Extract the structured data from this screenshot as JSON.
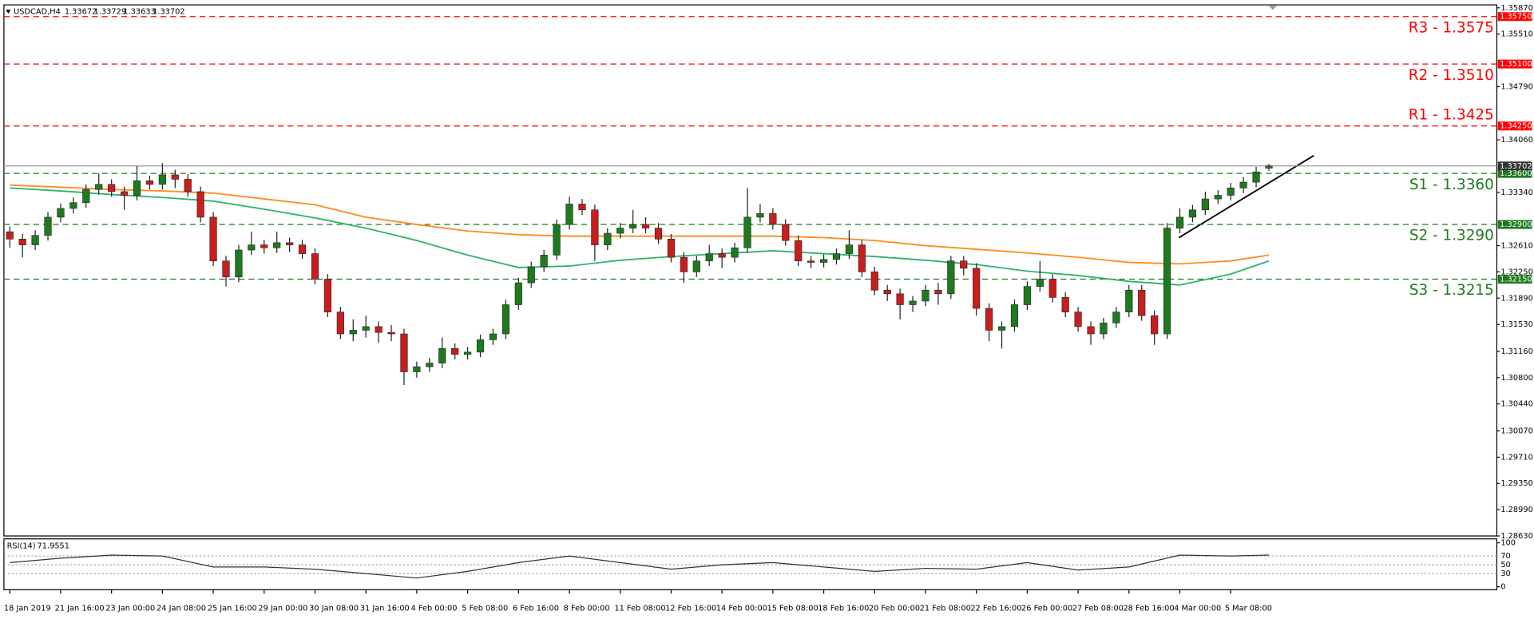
{
  "chart_data": {
    "type": "candlestick",
    "title": "USDCAD,H4",
    "categories": [
      "18 Jan 2019",
      null,
      null,
      null,
      "21 Jan 16:00",
      null,
      null,
      null,
      "23 Jan 00:00",
      null,
      null,
      null,
      "24 Jan 08:00",
      null,
      null,
      null,
      "25 Jan 16:00",
      null,
      null,
      null,
      "29 Jan 00:00",
      null,
      null,
      null,
      "30 Jan 08:00",
      null,
      null,
      null,
      "31 Jan 16:00",
      null,
      null,
      null,
      "4 Feb 00:00",
      null,
      null,
      null,
      "5 Feb 08:00",
      null,
      null,
      null,
      "6 Feb 16:00",
      null,
      null,
      null,
      "8 Feb 00:00",
      null,
      null,
      null,
      "11 Feb 08:00",
      null,
      null,
      null,
      "12 Feb 16:00",
      null,
      null,
      null,
      "14 Feb 00:00",
      null,
      null,
      null,
      "15 Feb 08:00",
      null,
      null,
      null,
      "18 Feb 16:00",
      null,
      null,
      null,
      "20 Feb 00:00",
      null,
      null,
      null,
      "21 Feb 08:00",
      null,
      null,
      null,
      "22 Feb 16:00",
      null,
      null,
      null,
      "26 Feb 00:00",
      null,
      null,
      null,
      "27 Feb 08:00",
      null,
      null,
      null,
      "28 Feb 16:00",
      null,
      null,
      null,
      "4 Mar 00:00",
      null,
      null,
      null,
      "5 Mar 08:00",
      null,
      null,
      null
    ],
    "open": [
      1.328,
      1.327,
      1.3262,
      1.3275,
      1.33,
      1.3312,
      1.332,
      1.3338,
      1.3345,
      1.3335,
      1.333,
      1.335,
      1.3345,
      1.3358,
      1.3352,
      1.3335,
      1.33,
      1.324,
      1.3218,
      1.3255,
      1.3262,
      1.3258,
      1.3265,
      1.3262,
      1.325,
      1.3215,
      1.317,
      1.314,
      1.3145,
      1.315,
      1.3142,
      1.314,
      1.3088,
      1.3095,
      1.31,
      1.312,
      1.3112,
      1.3115,
      1.3132,
      1.314,
      1.318,
      1.321,
      1.3232,
      1.3248,
      1.329,
      1.3318,
      1.331,
      1.3262,
      1.3278,
      1.3285,
      1.329,
      1.3285,
      1.327,
      1.3245,
      1.3225,
      1.324,
      1.325,
      1.3245,
      1.3258,
      1.33,
      1.3305,
      1.329,
      1.3268,
      1.324,
      1.3238,
      1.3242,
      1.325,
      1.3262,
      1.3225,
      1.32,
      1.3195,
      1.318,
      1.3185,
      1.32,
      1.3195,
      1.324,
      1.323,
      1.3175,
      1.3145,
      1.315,
      1.318,
      1.3205,
      1.3215,
      1.319,
      1.317,
      1.315,
      1.314,
      1.3155,
      1.317,
      1.32,
      1.3165,
      1.314,
      1.3285,
      1.33,
      1.331,
      1.3325,
      1.333,
      1.334,
      1.3348,
      1.33672
    ],
    "high": [
      1.3287,
      1.3277,
      1.3282,
      1.3307,
      1.3319,
      1.3327,
      1.3345,
      1.336,
      1.3352,
      1.3342,
      1.337,
      1.3357,
      1.3374,
      1.3365,
      1.3359,
      1.3342,
      1.3307,
      1.3247,
      1.3262,
      1.328,
      1.3269,
      1.328,
      1.3272,
      1.3269,
      1.3257,
      1.3222,
      1.3177,
      1.316,
      1.3165,
      1.3157,
      1.3152,
      1.3147,
      1.3102,
      1.3107,
      1.3135,
      1.3127,
      1.3122,
      1.3139,
      1.3147,
      1.3187,
      1.3217,
      1.3239,
      1.3255,
      1.3297,
      1.3328,
      1.3325,
      1.3317,
      1.3285,
      1.3292,
      1.331,
      1.33,
      1.3292,
      1.3277,
      1.3252,
      1.3247,
      1.3262,
      1.3257,
      1.3265,
      1.334,
      1.3318,
      1.3312,
      1.3297,
      1.3275,
      1.3247,
      1.3249,
      1.3257,
      1.3282,
      1.3269,
      1.3232,
      1.3207,
      1.3202,
      1.3192,
      1.3207,
      1.321,
      1.3247,
      1.3247,
      1.3237,
      1.3182,
      1.3157,
      1.3187,
      1.3212,
      1.324,
      1.3222,
      1.3197,
      1.3177,
      1.3157,
      1.3162,
      1.3177,
      1.3207,
      1.3207,
      1.3172,
      1.3292,
      1.3312,
      1.3317,
      1.3335,
      1.3337,
      1.3347,
      1.3355,
      1.3369,
      1.33729
    ],
    "low": [
      1.3258,
      1.3245,
      1.3255,
      1.3268,
      1.3293,
      1.3305,
      1.3313,
      1.3331,
      1.3328,
      1.331,
      1.3323,
      1.3338,
      1.3338,
      1.334,
      1.3328,
      1.3293,
      1.3233,
      1.3205,
      1.3211,
      1.3248,
      1.325,
      1.3251,
      1.3252,
      1.3243,
      1.3208,
      1.3163,
      1.3133,
      1.313,
      1.3135,
      1.3128,
      1.313,
      1.307,
      1.308,
      1.3088,
      1.3093,
      1.3105,
      1.3105,
      1.3108,
      1.3125,
      1.3133,
      1.3173,
      1.3203,
      1.3225,
      1.3241,
      1.3283,
      1.3303,
      1.324,
      1.3255,
      1.3271,
      1.3278,
      1.3278,
      1.3263,
      1.3238,
      1.321,
      1.3218,
      1.3233,
      1.323,
      1.3238,
      1.3251,
      1.3293,
      1.3283,
      1.3261,
      1.3233,
      1.323,
      1.3231,
      1.3235,
      1.3243,
      1.3218,
      1.3193,
      1.3185,
      1.316,
      1.317,
      1.3178,
      1.318,
      1.3188,
      1.322,
      1.3165,
      1.313,
      1.312,
      1.3143,
      1.3173,
      1.3198,
      1.3183,
      1.3163,
      1.3143,
      1.3125,
      1.3133,
      1.3148,
      1.3163,
      1.3158,
      1.3125,
      1.3133,
      1.3278,
      1.3293,
      1.3303,
      1.3318,
      1.3323,
      1.3333,
      1.3341,
      1.33633
    ],
    "close": [
      1.327,
      1.3262,
      1.3275,
      1.33,
      1.3312,
      1.332,
      1.3338,
      1.3345,
      1.3335,
      1.333,
      1.335,
      1.3345,
      1.3358,
      1.3352,
      1.3335,
      1.33,
      1.324,
      1.3218,
      1.3255,
      1.3262,
      1.3258,
      1.3265,
      1.3262,
      1.325,
      1.3215,
      1.317,
      1.314,
      1.3145,
      1.315,
      1.3142,
      1.314,
      1.3088,
      1.3095,
      1.31,
      1.312,
      1.3112,
      1.3115,
      1.3132,
      1.314,
      1.318,
      1.321,
      1.3232,
      1.3248,
      1.329,
      1.3318,
      1.331,
      1.3262,
      1.3278,
      1.3285,
      1.329,
      1.3285,
      1.327,
      1.3245,
      1.3225,
      1.324,
      1.325,
      1.3245,
      1.3258,
      1.33,
      1.3305,
      1.329,
      1.3268,
      1.324,
      1.3238,
      1.3242,
      1.325,
      1.3262,
      1.3225,
      1.32,
      1.3195,
      1.318,
      1.3185,
      1.32,
      1.3195,
      1.324,
      1.323,
      1.3175,
      1.3145,
      1.315,
      1.318,
      1.3205,
      1.3215,
      1.319,
      1.317,
      1.315,
      1.314,
      1.3155,
      1.317,
      1.32,
      1.3165,
      1.314,
      1.3285,
      1.33,
      1.331,
      1.3325,
      1.333,
      1.334,
      1.3348,
      1.3362,
      1.33702
    ],
    "up_color": "#1f7a1f",
    "down_color": "#c81e1e",
    "series": [
      {
        "color": "#ff8c1a",
        "x": [
          0,
          4,
          8,
          12,
          16,
          20,
          24,
          28,
          32,
          36,
          40,
          44,
          48,
          52,
          56,
          60,
          64,
          68,
          72,
          76,
          80,
          84,
          88,
          92,
          96,
          99
        ],
        "values": [
          1.3344,
          1.3341,
          1.3338,
          1.3336,
          1.3333,
          1.3325,
          1.3317,
          1.33,
          1.329,
          1.3281,
          1.3276,
          1.3274,
          1.3274,
          1.3274,
          1.3274,
          1.3274,
          1.3272,
          1.3268,
          1.3261,
          1.3256,
          1.3251,
          1.3245,
          1.3238,
          1.3236,
          1.324,
          1.3248
        ]
      },
      {
        "color": "#2db36b",
        "x": [
          0,
          4,
          8,
          12,
          16,
          20,
          24,
          28,
          32,
          36,
          40,
          44,
          48,
          52,
          56,
          60,
          64,
          68,
          72,
          76,
          80,
          84,
          88,
          92,
          96,
          99
        ],
        "values": [
          1.334,
          1.3336,
          1.3331,
          1.3327,
          1.3322,
          1.3311,
          1.3299,
          1.3285,
          1.3268,
          1.3248,
          1.3231,
          1.3233,
          1.3241,
          1.3246,
          1.325,
          1.3254,
          1.325,
          1.3246,
          1.3241,
          1.3235,
          1.3226,
          1.322,
          1.3212,
          1.3207,
          1.3222,
          1.324
        ]
      }
    ],
    "ylim": [
      1.2863,
      1.3587
    ],
    "yticks": [
      {
        "value": 1.3587,
        "label": "1.35870"
      },
      {
        "value": 1.3551,
        "label": "1.35510"
      },
      {
        "value": 1.3479,
        "label": "1.34790"
      },
      {
        "value": 1.3406,
        "label": "1.34060"
      },
      {
        "value": 1.3334,
        "label": "1.33340"
      },
      {
        "value": 1.3261,
        "label": "1.32610"
      },
      {
        "value": 1.3225,
        "label": "1.32250"
      },
      {
        "value": 1.3189,
        "label": "1.31890"
      },
      {
        "value": 1.3153,
        "label": "1.31530"
      },
      {
        "value": 1.3116,
        "label": "1.31160"
      },
      {
        "value": 1.308,
        "label": "1.30800"
      },
      {
        "value": 1.3044,
        "label": "1.30440"
      },
      {
        "value": 1.3007,
        "label": "1.30070"
      },
      {
        "value": 1.2971,
        "label": "1.29710"
      },
      {
        "value": 1.2935,
        "label": "1.29350"
      },
      {
        "value": 1.2899,
        "label": "1.28990"
      },
      {
        "value": 1.2863,
        "label": "1.28630"
      }
    ],
    "levels": [
      {
        "value": 1.3575,
        "label": "R3 - 1.3575",
        "tag": "1.35750",
        "color": "#ff0000"
      },
      {
        "value": 1.351,
        "label": "R2 - 1.3510",
        "tag": "1.35100",
        "color": "#ff0000"
      },
      {
        "value": 1.3425,
        "label": "R1 - 1.3425",
        "tag": "1.34250",
        "color": "#ff0000"
      },
      {
        "value": 1.336,
        "label": "S1 -  1.3360",
        "tag": "1.33600",
        "color": "#1f7a1f"
      },
      {
        "value": 1.329,
        "label": "S2 - 1.3290",
        "tag": "1.32900",
        "color": "#1f7a1f"
      },
      {
        "value": 1.3215,
        "label": "S3 - 1.3215",
        "tag": "1.32150",
        "color": "#1f7a1f"
      }
    ],
    "rsi": {
      "name": "RSI(14)",
      "color": "#333333",
      "x": [
        0,
        4,
        8,
        12,
        16,
        20,
        24,
        28,
        32,
        36,
        40,
        44,
        48,
        52,
        56,
        60,
        64,
        68,
        72,
        76,
        80,
        84,
        88,
        92,
        96,
        99
      ],
      "values": [
        55,
        65,
        72,
        70,
        45,
        45,
        40,
        30,
        20,
        35,
        55,
        70,
        55,
        40,
        50,
        55,
        45,
        35,
        42,
        40,
        55,
        38,
        45,
        72,
        70,
        71.9551
      ],
      "ylim": [
        0,
        100
      ],
      "yticks": [
        0,
        30,
        50,
        70,
        100
      ]
    }
  }
}
